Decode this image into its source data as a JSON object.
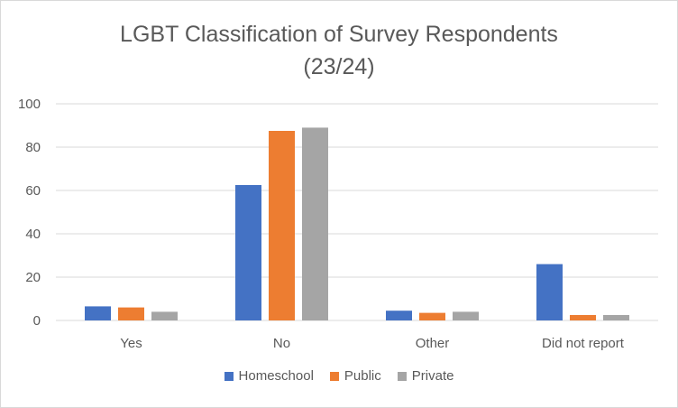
{
  "chart_data": {
    "type": "bar",
    "title_line1": "LGBT Classification of Survey Respondents",
    "title_line2": "(23/24)",
    "categories": [
      "Yes",
      "No",
      "Other",
      "Did not report"
    ],
    "series": [
      {
        "name": "Homeschool",
        "color": "#4472C4",
        "values": [
          6.5,
          62.5,
          4.5,
          26
        ]
      },
      {
        "name": "Public",
        "color": "#ED7D31",
        "values": [
          6,
          87.5,
          3.5,
          2.5
        ]
      },
      {
        "name": "Private",
        "color": "#A5A5A5",
        "values": [
          4,
          89,
          4,
          2.5
        ]
      }
    ],
    "ylim": [
      0,
      100
    ],
    "yticks": [
      "0",
      "20",
      "40",
      "60",
      "80",
      "100"
    ],
    "grid": true,
    "legend_position": "bottom"
  }
}
